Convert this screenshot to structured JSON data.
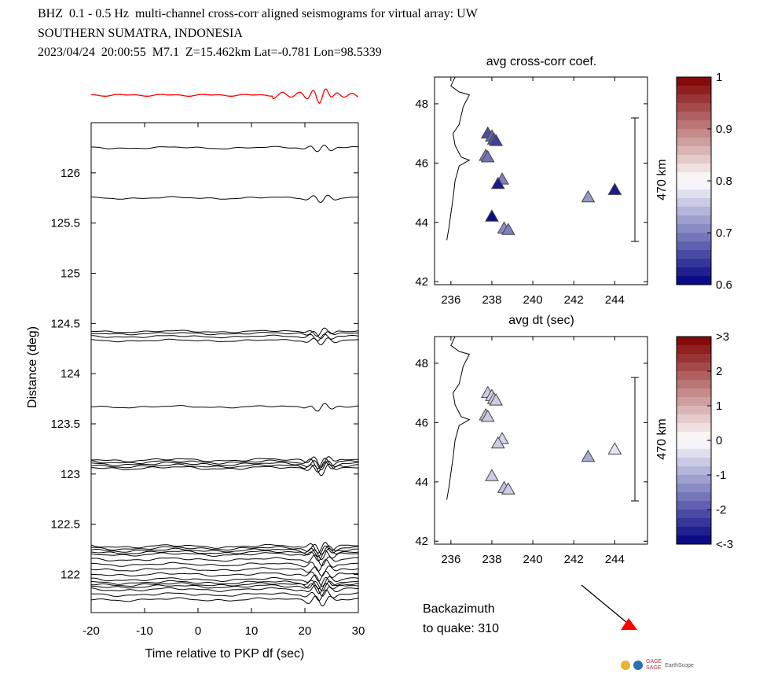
{
  "header": {
    "line1": "BHZ  0.1 - 0.5 Hz  multi-channel cross-corr aligned seismograms for virtual array: UW",
    "line2": "SOUTHERN SUMATRA, INDONESIA",
    "line3": "2023/04/24  20:00:55  M7.1  Z=15.462km Lat=-0.781 Lon=98.5339"
  },
  "backazimuth": {
    "label1": "Backazimuth",
    "label2": "to quake:  310"
  },
  "colors": {
    "trace": "#000000",
    "stack": "#ff0000",
    "quake_marker": "#ff0000"
  },
  "logos": [
    "GAGE",
    "SAGE",
    "EarthScope"
  ],
  "chart_data": [
    {
      "type": "line",
      "title": "",
      "xlabel": "Time relative to PKP df (sec)",
      "ylabel": "Distance (deg)",
      "xlim": [
        -20,
        30
      ],
      "ylim": [
        121.62,
        126.5
      ],
      "xticks": [
        "-20",
        "-10",
        "0",
        "10",
        "20",
        "30"
      ],
      "yticks": [
        "122",
        "122.5",
        "123",
        "123.5",
        "124",
        "124.5",
        "125",
        "125.5",
        "126"
      ],
      "trace_distances": [
        126.25,
        125.75,
        124.42,
        124.4,
        124.37,
        124.33,
        123.67,
        123.14,
        123.12,
        123.1,
        123.08,
        123.06,
        122.28,
        122.26,
        122.24,
        122.22,
        122.2,
        122.15,
        122.1,
        122.05,
        122.0,
        121.95,
        121.92,
        121.9,
        121.88,
        121.85,
        121.8,
        121.75
      ]
    },
    {
      "type": "scatter",
      "title": "avg cross-corr coef.",
      "xlabel": "avg dt (sec)",
      "ylabel": "",
      "xlim": [
        235.2,
        245.6
      ],
      "ylim": [
        41.9,
        48.9
      ],
      "xticks": [
        "236",
        "238",
        "240",
        "242",
        "244"
      ],
      "yticks": [
        "42",
        "44",
        "46",
        "48"
      ],
      "scale_bar": "470 km",
      "colorbar_ticks": [
        "1",
        "0.9",
        "0.8",
        "0.7",
        "0.6"
      ],
      "points": [
        {
          "x": 237.8,
          "y": 47.0,
          "c": 0.66
        },
        {
          "x": 238.0,
          "y": 46.9,
          "c": 0.68
        },
        {
          "x": 238.1,
          "y": 46.8,
          "c": 0.67
        },
        {
          "x": 238.2,
          "y": 46.75,
          "c": 0.65
        },
        {
          "x": 237.7,
          "y": 46.25,
          "c": 0.7
        },
        {
          "x": 237.8,
          "y": 46.2,
          "c": 0.69
        },
        {
          "x": 238.5,
          "y": 45.45,
          "c": 0.7
        },
        {
          "x": 238.3,
          "y": 45.3,
          "c": 0.62
        },
        {
          "x": 238.0,
          "y": 44.2,
          "c": 0.61
        },
        {
          "x": 238.6,
          "y": 43.8,
          "c": 0.71
        },
        {
          "x": 238.8,
          "y": 43.75,
          "c": 0.7
        },
        {
          "x": 242.7,
          "y": 44.85,
          "c": 0.72
        },
        {
          "x": 244.0,
          "y": 45.1,
          "c": 0.62
        }
      ]
    },
    {
      "type": "scatter",
      "title": "",
      "xlabel": "",
      "ylabel": "",
      "xlim": [
        235.2,
        245.6
      ],
      "ylim": [
        41.9,
        48.9
      ],
      "xticks": [
        "236",
        "238",
        "240",
        "242",
        "244"
      ],
      "yticks": [
        "42",
        "44",
        "46",
        "48"
      ],
      "scale_bar": "470 km",
      "colorbar_ticks": [
        ">3",
        "2",
        "1",
        "0",
        "-1",
        "-2",
        "<-3"
      ],
      "points": [
        {
          "x": 237.8,
          "y": 47.0,
          "c": -0.6
        },
        {
          "x": 238.0,
          "y": 46.9,
          "c": -0.5
        },
        {
          "x": 238.1,
          "y": 46.8,
          "c": -0.5
        },
        {
          "x": 238.2,
          "y": 46.75,
          "c": -0.6
        },
        {
          "x": 237.7,
          "y": 46.25,
          "c": -0.7
        },
        {
          "x": 237.8,
          "y": 46.2,
          "c": -0.6
        },
        {
          "x": 238.5,
          "y": 45.45,
          "c": -0.5
        },
        {
          "x": 238.3,
          "y": 45.3,
          "c": -0.6
        },
        {
          "x": 238.0,
          "y": 44.2,
          "c": -0.6
        },
        {
          "x": 238.6,
          "y": 43.8,
          "c": -0.7
        },
        {
          "x": 238.8,
          "y": 43.75,
          "c": -0.6
        },
        {
          "x": 242.7,
          "y": 44.85,
          "c": -1.0
        },
        {
          "x": 244.0,
          "y": 45.1,
          "c": -0.3
        }
      ]
    }
  ]
}
